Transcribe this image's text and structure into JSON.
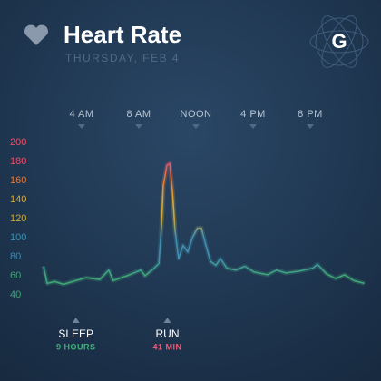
{
  "chart_data": {
    "type": "line",
    "title": "Heart Rate",
    "subtitle": "THURSDAY, FEB 4",
    "logo": "G",
    "x": [
      1.33,
      1.59,
      2.1,
      2.73,
      3.37,
      4.32,
      5.27,
      5.9,
      6.2,
      7.17,
      8.13,
      8.44,
      9.08,
      9.4,
      9.59,
      9.71,
      9.97,
      10.16,
      10.35,
      10.54,
      10.79,
      11.1,
      11.43,
      11.75,
      12.1,
      12.38,
      12.7,
      13.02,
      13.4,
      13.71,
      14.16,
      14.79,
      15.43,
      16.06,
      17.0,
      17.65,
      18.29,
      19.24,
      20.19,
      20.5,
      21.14,
      21.78,
      22.4,
      23.05,
      23.8
    ],
    "values": [
      70,
      52,
      54,
      51,
      54,
      58,
      56,
      66,
      55,
      60,
      66,
      60,
      68,
      73,
      111,
      154,
      176,
      178,
      150,
      107,
      78,
      92,
      85,
      100,
      110,
      110,
      92,
      75,
      71,
      78,
      68,
      66,
      70,
      64,
      61,
      66,
      63,
      65,
      68,
      72,
      62,
      57,
      61,
      55,
      52
    ],
    "xlim": [
      0,
      24
    ],
    "xticks": [
      {
        "value": 4,
        "label": "4 AM"
      },
      {
        "value": 8,
        "label": "8 AM"
      },
      {
        "value": 12,
        "label": "NOON"
      },
      {
        "value": 16,
        "label": "4 PM"
      },
      {
        "value": 20,
        "label": "8 PM"
      }
    ],
    "ylim": [
      40,
      200
    ],
    "yticks": [
      40,
      60,
      80,
      100,
      120,
      140,
      160,
      180,
      200
    ],
    "ytick_colors": [
      "#3fa676",
      "#3fa676",
      "#3f8fb0",
      "#3f8fb0",
      "#c9a93c",
      "#d7a83a",
      "#e07a3c",
      "#e8506a",
      "#e8506a"
    ],
    "annotations": [
      {
        "x": 3.6,
        "label": "SLEEP",
        "detail": "9 HOURS",
        "color": "#3fb27a"
      },
      {
        "x": 10,
        "label": "RUN",
        "detail": "41 MIN",
        "color": "#ec5a78"
      }
    ]
  }
}
